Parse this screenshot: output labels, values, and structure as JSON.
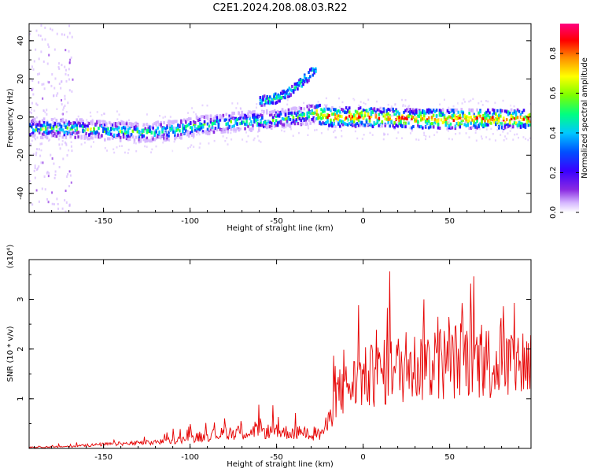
{
  "figure": {
    "title": "C2E1.2024.208.08.03.R22"
  },
  "chart_data": [
    {
      "type": "heatmap",
      "xlabel": "Height of straight line (km)",
      "ylabel": "Frequency (Hz)",
      "xlim": [
        -193,
        97
      ],
      "ylim": [
        -50,
        49
      ],
      "x_ticks": [
        -150,
        -100,
        -50,
        0,
        50
      ],
      "y_ticks": [
        -40,
        -20,
        0,
        20,
        40
      ],
      "colorbar": {
        "label": "Normalized spectral amplitude",
        "range": [
          0,
          0.95
        ],
        "ticks": [
          0.0,
          0.2,
          0.4,
          0.6,
          0.8
        ]
      },
      "ridges": [
        {
          "x": [
            -193,
            -170,
            -150,
            -130,
            -110,
            -100,
            -80,
            -60,
            -40,
            -28,
            -20,
            0,
            30,
            60,
            97
          ],
          "y": [
            -6,
            -6,
            -7,
            -8,
            -7,
            -5,
            -3,
            -2,
            0,
            2,
            0,
            0,
            -1,
            -1,
            -1
          ]
        },
        {
          "x": [
            -60,
            -50,
            -45,
            -40,
            -35,
            -28
          ],
          "y": [
            8,
            10,
            12,
            15,
            19,
            25
          ]
        }
      ],
      "grid": false
    },
    {
      "type": "line",
      "xlabel": "Height of straight line (km)",
      "ylabel": "SNR (10 * v/v)",
      "y_scale_label": "(x10⁴)",
      "xlim": [
        -193,
        97
      ],
      "ylim": [
        0,
        3.8
      ],
      "x_ticks": [
        -150,
        -100,
        -50,
        0,
        50
      ],
      "y_ticks": [
        1,
        2,
        3
      ],
      "envelope": {
        "x": [
          -193,
          -170,
          -150,
          -120,
          -100,
          -80,
          -60,
          -40,
          -25,
          -20,
          -15,
          -5,
          0,
          10,
          20,
          40,
          60,
          80,
          97
        ],
        "y": [
          0.02,
          0.04,
          0.08,
          0.12,
          0.2,
          0.3,
          0.35,
          0.32,
          0.28,
          0.5,
          1.1,
          1.3,
          1.4,
          1.5,
          1.6,
          1.7,
          1.8,
          1.7,
          1.75
        ]
      },
      "color": "#e60000",
      "grid": false
    }
  ]
}
